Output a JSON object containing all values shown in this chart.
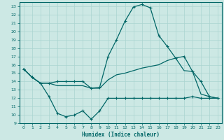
{
  "bg_color": "#cce8e4",
  "grid_color": "#aad4d0",
  "line_color": "#006666",
  "xlabel": "Humidex (Indice chaleur)",
  "xlim": [
    -0.5,
    23.5
  ],
  "ylim": [
    9,
    23.5
  ],
  "yticks": [
    9,
    10,
    11,
    12,
    13,
    14,
    15,
    16,
    17,
    18,
    19,
    20,
    21,
    22,
    23
  ],
  "xticks": [
    0,
    1,
    2,
    3,
    4,
    5,
    6,
    7,
    8,
    9,
    10,
    11,
    12,
    13,
    14,
    15,
    16,
    17,
    18,
    19,
    20,
    21,
    22,
    23
  ],
  "line1_x": [
    0,
    1,
    2,
    3,
    4,
    5,
    6,
    7,
    8,
    9,
    10,
    11,
    12,
    13,
    14,
    15,
    16,
    17,
    18,
    19,
    20,
    21,
    22,
    23
  ],
  "line1_y": [
    15.5,
    14.5,
    13.8,
    13.8,
    14.0,
    14.0,
    14.0,
    14.0,
    13.2,
    13.3,
    17.0,
    19.0,
    21.2,
    22.9,
    23.2,
    22.8,
    19.5,
    18.2,
    16.8,
    17.0,
    15.2,
    14.0,
    12.2,
    12.0
  ],
  "line2_x": [
    0,
    1,
    2,
    3,
    4,
    5,
    6,
    7,
    8,
    9,
    10,
    11,
    12,
    13,
    14,
    15,
    16,
    17,
    18,
    19,
    20,
    21,
    22,
    23
  ],
  "line2_y": [
    15.5,
    14.5,
    13.8,
    13.8,
    13.5,
    13.5,
    13.5,
    13.5,
    13.2,
    13.2,
    14.2,
    14.8,
    15.0,
    15.3,
    15.6,
    15.8,
    16.0,
    16.5,
    16.8,
    15.3,
    15.2,
    12.5,
    12.2,
    12.0
  ],
  "line3_x": [
    0,
    1,
    2,
    3,
    4,
    5,
    6,
    7,
    8,
    9,
    10,
    11,
    12,
    13,
    14,
    15,
    16,
    17,
    18,
    19,
    20,
    21,
    22,
    23
  ],
  "line3_y": [
    15.5,
    14.5,
    13.8,
    12.2,
    10.2,
    9.8,
    10.0,
    10.5,
    9.5,
    10.5,
    12.0,
    12.0,
    12.0,
    12.0,
    12.0,
    12.0,
    12.0,
    12.0,
    12.0,
    12.0,
    12.2,
    12.0,
    12.0,
    12.0
  ]
}
